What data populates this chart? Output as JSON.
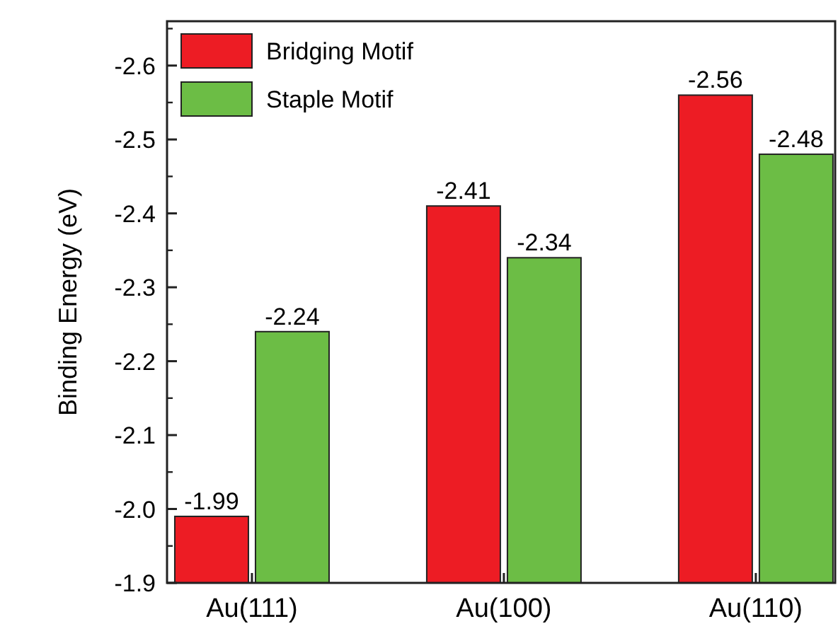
{
  "chart_data": {
    "type": "bar",
    "ylabel": "Binding Energy (eV)",
    "categories": [
      "Au(111)",
      "Au(100)",
      "Au(110)"
    ],
    "series": [
      {
        "name": "Bridging Motif",
        "color": "#ed1c24",
        "values": [
          -1.99,
          -2.41,
          -2.56
        ]
      },
      {
        "name": "Staple Motif",
        "color": "#6cbd45",
        "values": [
          -2.24,
          -2.34,
          -2.48
        ]
      }
    ],
    "ylim": [
      -1.9,
      -2.66
    ],
    "yticks": [
      -1.9,
      {
        "value": -2,
        "label": "-2.0"
      },
      -2.1,
      -2.2,
      -2.3,
      -2.4,
      -2.5,
      -2.6
    ],
    "data_labels": true,
    "legend": "top left",
    "grid": false
  }
}
